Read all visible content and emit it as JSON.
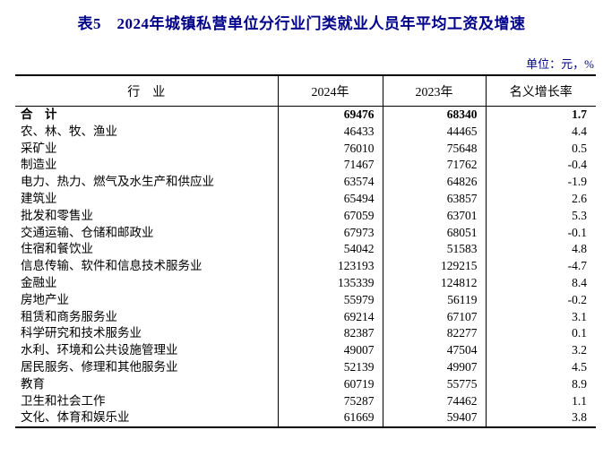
{
  "title": "表5　2024年城镇私营单位分行业门类就业人员年平均工资及增速",
  "unit_note": "单位：元，%",
  "colors": {
    "title_text": "#00008B",
    "table_text": "#000000",
    "border": "#000000",
    "background": "#FFFFFF"
  },
  "chart_data": {
    "type": "table",
    "title": "2024年城镇私营单位分行业门类就业人员年平均工资及增速",
    "unit": "元，%",
    "columns": [
      "行　业",
      "2024年",
      "2023年",
      "名义增长率"
    ],
    "rows": [
      {
        "industry": "合　计",
        "y2024": "69476",
        "y2023": "68340",
        "growth": "1.7",
        "bold": true
      },
      {
        "industry": "农、林、牧、渔业",
        "y2024": "46433",
        "y2023": "44465",
        "growth": "4.4",
        "bold": false
      },
      {
        "industry": "采矿业",
        "y2024": "76010",
        "y2023": "75648",
        "growth": "0.5",
        "bold": false
      },
      {
        "industry": "制造业",
        "y2024": "71467",
        "y2023": "71762",
        "growth": "-0.4",
        "bold": false
      },
      {
        "industry": "电力、热力、燃气及水生产和供应业",
        "y2024": "63574",
        "y2023": "64826",
        "growth": "-1.9",
        "bold": false
      },
      {
        "industry": "建筑业",
        "y2024": "65494",
        "y2023": "63857",
        "growth": "2.6",
        "bold": false
      },
      {
        "industry": "批发和零售业",
        "y2024": "67059",
        "y2023": "63701",
        "growth": "5.3",
        "bold": false
      },
      {
        "industry": "交通运输、仓储和邮政业",
        "y2024": "67973",
        "y2023": "68051",
        "growth": "-0.1",
        "bold": false
      },
      {
        "industry": "住宿和餐饮业",
        "y2024": "54042",
        "y2023": "51583",
        "growth": "4.8",
        "bold": false
      },
      {
        "industry": "信息传输、软件和信息技术服务业",
        "y2024": "123193",
        "y2023": "129215",
        "growth": "-4.7",
        "bold": false
      },
      {
        "industry": "金融业",
        "y2024": "135339",
        "y2023": "124812",
        "growth": "8.4",
        "bold": false
      },
      {
        "industry": "房地产业",
        "y2024": "55979",
        "y2023": "56119",
        "growth": "-0.2",
        "bold": false
      },
      {
        "industry": "租赁和商务服务业",
        "y2024": "69214",
        "y2023": "67107",
        "growth": "3.1",
        "bold": false
      },
      {
        "industry": "科学研究和技术服务业",
        "y2024": "82387",
        "y2023": "82277",
        "growth": "0.1",
        "bold": false
      },
      {
        "industry": "水利、环境和公共设施管理业",
        "y2024": "49007",
        "y2023": "47504",
        "growth": "3.2",
        "bold": false
      },
      {
        "industry": "居民服务、修理和其他服务业",
        "y2024": "52139",
        "y2023": "49907",
        "growth": "4.5",
        "bold": false
      },
      {
        "industry": "教育",
        "y2024": "60719",
        "y2023": "55775",
        "growth": "8.9",
        "bold": false
      },
      {
        "industry": "卫生和社会工作",
        "y2024": "75287",
        "y2023": "74462",
        "growth": "1.1",
        "bold": false
      },
      {
        "industry": "文化、体育和娱乐业",
        "y2024": "61669",
        "y2023": "59407",
        "growth": "3.8",
        "bold": false
      }
    ]
  }
}
